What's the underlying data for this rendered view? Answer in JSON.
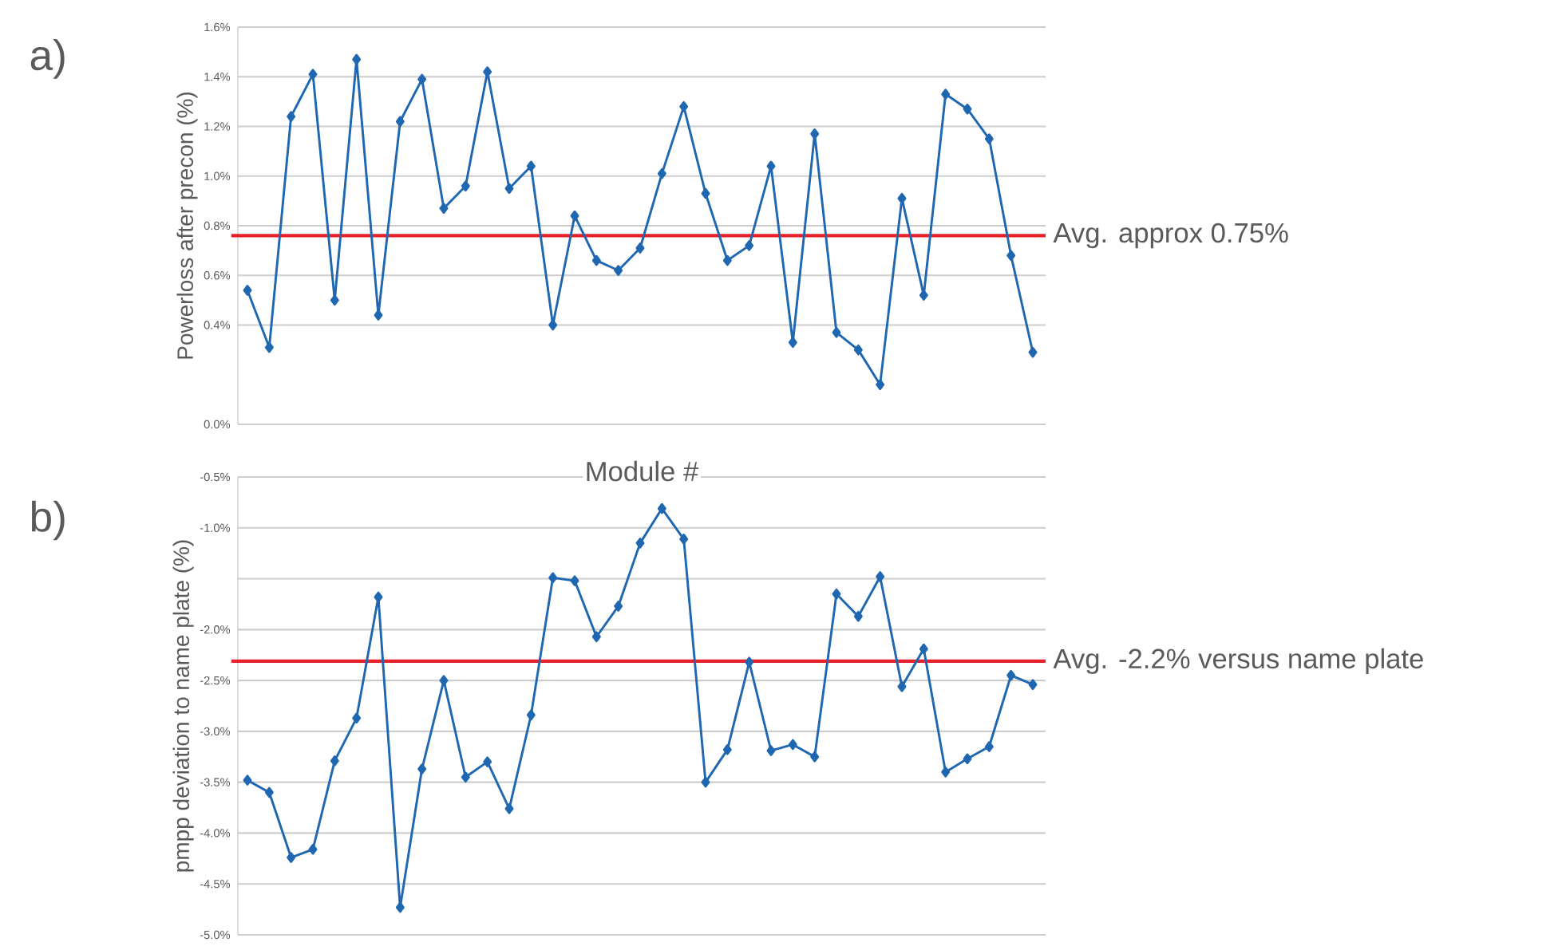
{
  "chart_data": [
    {
      "type": "line",
      "xlabel": "Module #",
      "ylabel": "Powerloss after precon (%)",
      "categories": [
        null,
        null,
        null,
        null,
        null,
        null,
        null,
        null,
        null,
        null,
        null,
        null,
        null,
        null,
        null,
        null,
        null,
        null,
        null,
        null,
        null,
        null,
        null,
        null,
        null,
        null,
        null,
        null,
        null,
        null,
        null,
        null,
        null,
        null,
        null,
        null,
        null
      ],
      "values": [
        0.54,
        0.31,
        1.24,
        1.41,
        0.5,
        1.47,
        0.44,
        1.22,
        1.39,
        0.87,
        0.96,
        1.42,
        0.95,
        1.04,
        0.4,
        0.84,
        0.66,
        0.62,
        0.71,
        1.01,
        1.28,
        0.93,
        0.66,
        0.72,
        1.04,
        0.33,
        1.17,
        0.37,
        0.3,
        0.16,
        0.91,
        0.52,
        1.33,
        1.27,
        1.15,
        0.68,
        0.29
      ],
      "color": "#1f67b1",
      "marker": "diamond",
      "line_style": "solid",
      "ylim": [
        0.0,
        1.6
      ],
      "yticks": [
        {
          "value": 0.0,
          "label": "0.0%"
        },
        {
          "value": 0.4,
          "label": "0.4%"
        },
        {
          "value": 0.6,
          "label": "0.6%"
        },
        {
          "value": 0.8,
          "label": "0.8%"
        },
        {
          "value": 1.0,
          "label": "1.0%"
        },
        {
          "value": 1.2,
          "label": "1.2%"
        },
        {
          "value": 1.4,
          "label": "1.4%"
        },
        {
          "value": 1.6,
          "label": "1.6%"
        }
      ],
      "grid": "y",
      "tick_labels": "y",
      "ref_lines": [
        {
          "axis": "y",
          "value": 0.76,
          "label": "Avg. approx 0.75%",
          "color": "#e8202a"
        }
      ],
      "annotations": [
        "a)"
      ]
    },
    {
      "type": "line",
      "ylabel": "pmpp deviation to name plate (%)",
      "categories": [
        null,
        null,
        null,
        null,
        null,
        null,
        null,
        null,
        null,
        null,
        null,
        null,
        null,
        null,
        null,
        null,
        null,
        null,
        null,
        null,
        null,
        null,
        null,
        null,
        null,
        null,
        null,
        null,
        null,
        null,
        null,
        null,
        null,
        null,
        null,
        null,
        null
      ],
      "values": [
        -3.48,
        -3.6,
        -4.24,
        -4.16,
        -3.29,
        -2.87,
        -1.68,
        -4.73,
        -3.37,
        -2.5,
        -3.45,
        -3.3,
        -3.76,
        -2.84,
        -1.49,
        -1.52,
        -2.07,
        -1.77,
        -1.15,
        -0.81,
        -1.11,
        -3.5,
        -3.18,
        -2.32,
        -3.19,
        -3.13,
        -3.25,
        -1.65,
        -1.87,
        -1.48,
        -2.56,
        -2.19,
        -3.4,
        -3.27,
        -3.15,
        -2.45,
        -2.54
      ],
      "color": "#1f67b1",
      "marker": "diamond",
      "line_style": "solid",
      "ylim": [
        -5.0,
        -0.5
      ],
      "yticks": [
        {
          "value": -5.0,
          "label": "-5.0%"
        },
        {
          "value": -4.5,
          "label": "-4.5%"
        },
        {
          "value": -4.0,
          "label": "-4.0%"
        },
        {
          "value": -3.5,
          "label": "-3.5%"
        },
        {
          "value": -3.0,
          "label": "-3.0%"
        },
        {
          "value": -2.5,
          "label": "-2.5%"
        },
        {
          "value": -2.0,
          "label": "-2.0%"
        },
        {
          "value": -1.5,
          "label": null
        },
        {
          "value": -1.0,
          "label": "-1.0%"
        },
        {
          "value": -0.5,
          "label": "-0.5%"
        }
      ],
      "grid": "y",
      "tick_labels": "y",
      "ref_lines": [
        {
          "axis": "y",
          "value": -2.31,
          "label": "Avg. -2.2% versus name plate",
          "color": "#e8202a"
        }
      ],
      "annotations": [
        "b)"
      ]
    }
  ]
}
